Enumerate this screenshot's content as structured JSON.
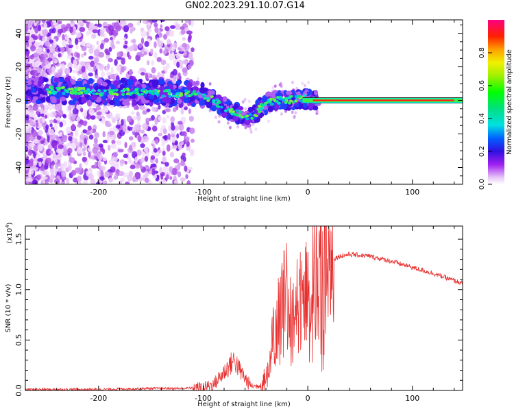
{
  "figure": {
    "title": "GN02.2023.291.10.07.G14"
  },
  "chart_data": [
    {
      "type": "heatmap",
      "xlabel": "Height of straight line (km)",
      "ylabel": "Frequency (Hz)",
      "xlim": [
        -270,
        148
      ],
      "ylim": [
        -50,
        48
      ],
      "xticks": [
        -200,
        -100,
        0,
        100
      ],
      "yticks": [
        -40,
        -20,
        0,
        20,
        40
      ],
      "colorbar": {
        "label": "Normalized spectral amplitude",
        "range": [
          0,
          1
        ],
        "ticks": [
          0.0,
          0.2,
          0.4,
          0.6,
          0.8
        ],
        "tick_labels": [
          "0.0",
          "0.2",
          "0.4",
          "0.6",
          "0.8"
        ]
      },
      "ridge": {
        "x": [
          -270,
          -240,
          -200,
          -160,
          -130,
          -110,
          -100,
          -90,
          -80,
          -70,
          -60,
          -55,
          -50,
          -45,
          -40,
          -35,
          -30,
          -20,
          -10,
          0,
          10,
          20,
          40,
          60,
          80,
          100,
          120,
          148
        ],
        "y": [
          6,
          6,
          5,
          5,
          4,
          4,
          3,
          0,
          -4,
          -7,
          -10,
          -10,
          -8,
          -4,
          -2,
          -1,
          0,
          0,
          1,
          1,
          0,
          0,
          0,
          0,
          0,
          0,
          0,
          1
        ]
      }
    },
    {
      "type": "line",
      "xlabel": "Height of straight line (km)",
      "ylabel": "SNR (10 * v/v)",
      "y_scale_label": "(x10",
      "y_scale_exponent": "4",
      "y_scale_suffix": ")",
      "xlim": [
        -270,
        148
      ],
      "ylim": [
        0,
        1.63
      ],
      "xticks": [
        -200,
        -100,
        0,
        100
      ],
      "yticks": [
        0.0,
        0.5,
        1.0,
        1.5
      ],
      "ytick_labels": [
        "0.0",
        "0.5",
        "1.0",
        "1.5"
      ],
      "series": [
        {
          "color": "#e83030",
          "x": [
            -270,
            -250,
            -200,
            -150,
            -120,
            -100,
            -90,
            -80,
            -75,
            -70,
            -65,
            -60,
            -55,
            -50,
            -45,
            -40,
            -35,
            -30,
            -25,
            -20,
            -15,
            -10,
            -5,
            0,
            10,
            20,
            30,
            40,
            60,
            80,
            100,
            120,
            148
          ],
          "y": [
            0.01,
            0.01,
            0.01,
            0.02,
            0.02,
            0.03,
            0.06,
            0.18,
            0.25,
            0.3,
            0.2,
            0.12,
            0.05,
            0.04,
            0.05,
            0.12,
            0.4,
            0.65,
            0.85,
            0.95,
            0.9,
            0.95,
            0.95,
            1.0,
            1.15,
            1.28,
            1.33,
            1.35,
            1.33,
            1.28,
            1.22,
            1.16,
            1.06
          ]
        }
      ]
    }
  ]
}
